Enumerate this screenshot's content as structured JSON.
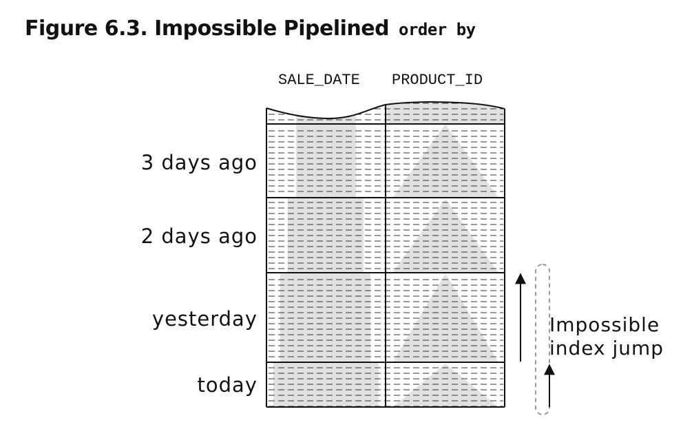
{
  "figure": {
    "title": "Figure 6.3. Impossible Pipelined",
    "title_code": "order by"
  },
  "columns": {
    "sale_date": "SALE_DATE",
    "product_id": "PRODUCT_ID"
  },
  "rows": [
    {
      "label": "3 days ago"
    },
    {
      "label": "2 days ago"
    },
    {
      "label": "yesterday"
    },
    {
      "label": "today"
    }
  ],
  "annotation": {
    "line1": "Impossible",
    "line2": "index jump"
  },
  "colors": {
    "shade": "#e1e1e1",
    "line": "#111111",
    "dash": "#333333",
    "bracket": "#9a9a9a"
  }
}
